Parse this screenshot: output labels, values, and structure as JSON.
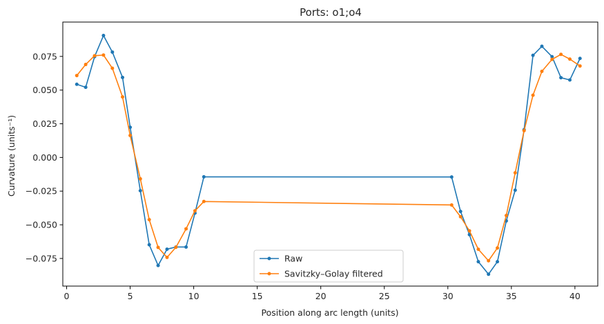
{
  "chart_data": {
    "type": "line",
    "title": "Ports: o1;o4",
    "xlabel": "Position along arc length (units)",
    "ylabel": "Curvature (units⁻¹)",
    "xlim": [
      -0.3,
      41.8
    ],
    "ylim": [
      -0.0955,
      0.1005
    ],
    "xticks": [
      0,
      5,
      10,
      15,
      20,
      25,
      30,
      35,
      40
    ],
    "xtick_labels": [
      "0",
      "5",
      "10",
      "15",
      "20",
      "25",
      "30",
      "35",
      "40"
    ],
    "yticks": [
      -0.075,
      -0.05,
      -0.025,
      0.0,
      0.025,
      0.05,
      0.075
    ],
    "ytick_labels": [
      "−0.075",
      "−0.050",
      "−0.025",
      "0.000",
      "0.025",
      "0.050",
      "0.075"
    ],
    "grid": false,
    "legend_position": "lower center",
    "series": [
      {
        "name": "Raw",
        "color": "#1f77b4",
        "x": [
          0.8,
          1.5,
          2.2,
          2.9,
          3.6,
          4.4,
          5.0,
          5.8,
          6.5,
          7.2,
          7.9,
          8.6,
          9.4,
          10.1,
          10.8,
          30.3,
          31.0,
          31.7,
          32.4,
          33.2,
          33.9,
          34.6,
          35.3,
          36.0,
          36.7,
          37.4,
          38.2,
          38.9,
          39.6,
          40.4
        ],
        "y": [
          0.0543,
          0.0521,
          0.0748,
          0.0905,
          0.0782,
          0.0594,
          0.0224,
          -0.0247,
          -0.0648,
          -0.0802,
          -0.0681,
          -0.0665,
          -0.0665,
          -0.0413,
          -0.0144,
          -0.0145,
          -0.0401,
          -0.0573,
          -0.0774,
          -0.0867,
          -0.0774,
          -0.0471,
          -0.0243,
          0.0206,
          0.0758,
          0.0825,
          0.0748,
          0.0592,
          0.0575,
          0.0735
        ]
      },
      {
        "name": "Savitzky–Golay filtered",
        "color": "#ff7f0e",
        "x": [
          0.8,
          1.5,
          2.2,
          2.9,
          3.6,
          4.4,
          5.0,
          5.8,
          6.5,
          7.2,
          7.9,
          8.6,
          9.4,
          10.1,
          10.8,
          30.3,
          31.0,
          31.7,
          32.4,
          33.2,
          33.9,
          34.6,
          35.3,
          36.0,
          36.7,
          37.4,
          38.2,
          38.9,
          39.6,
          40.4
        ],
        "y": [
          0.0608,
          0.069,
          0.0755,
          0.076,
          0.0662,
          0.0449,
          0.0163,
          -0.0159,
          -0.0462,
          -0.0668,
          -0.0742,
          -0.0667,
          -0.053,
          -0.0396,
          -0.0327,
          -0.0353,
          -0.044,
          -0.0545,
          -0.0682,
          -0.0767,
          -0.0672,
          -0.0431,
          -0.0114,
          0.0199,
          0.0462,
          0.0639,
          0.0728,
          0.0765,
          0.073,
          0.0679
        ]
      }
    ]
  }
}
